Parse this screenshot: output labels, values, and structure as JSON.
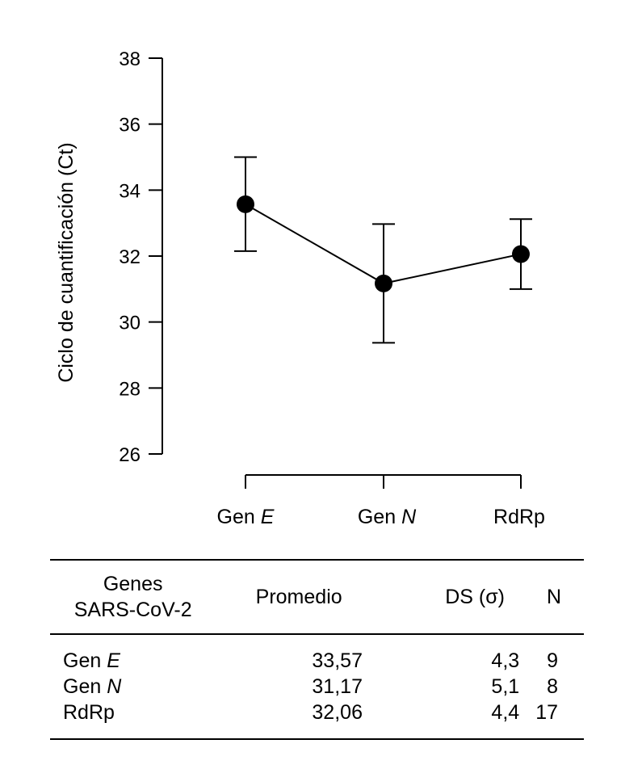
{
  "chart_data": {
    "type": "line",
    "ylabel": "Ciclo de cuantificación (Ct)",
    "ylim": [
      26,
      38
    ],
    "yticks": [
      26,
      28,
      30,
      32,
      34,
      36,
      38
    ],
    "categories": [
      {
        "prefix": "Gen ",
        "italic": "E"
      },
      {
        "prefix": "Gen ",
        "italic": "N"
      },
      {
        "prefix": "RdRp",
        "italic": ""
      }
    ],
    "values": [
      33.57,
      31.17,
      32.06
    ],
    "error_upper": [
      35.0,
      32.97,
      33.12
    ],
    "error_lower": [
      32.15,
      29.37,
      31.0
    ]
  },
  "table": {
    "headers": {
      "gene_line1": "Genes",
      "gene_line2": "SARS-CoV-2",
      "mean": "Promedio",
      "sd": "DS (σ)",
      "n": "N"
    },
    "rows": [
      {
        "prefix": "Gen ",
        "italic": "E",
        "mean": "33,57",
        "sd": "4,3",
        "n": "9"
      },
      {
        "prefix": "Gen ",
        "italic": "N",
        "mean": "31,17",
        "sd": "5,1",
        "n": "8"
      },
      {
        "prefix": "RdRp",
        "italic": "",
        "mean": "32,06",
        "sd": "4,4",
        "n": "17"
      }
    ]
  }
}
